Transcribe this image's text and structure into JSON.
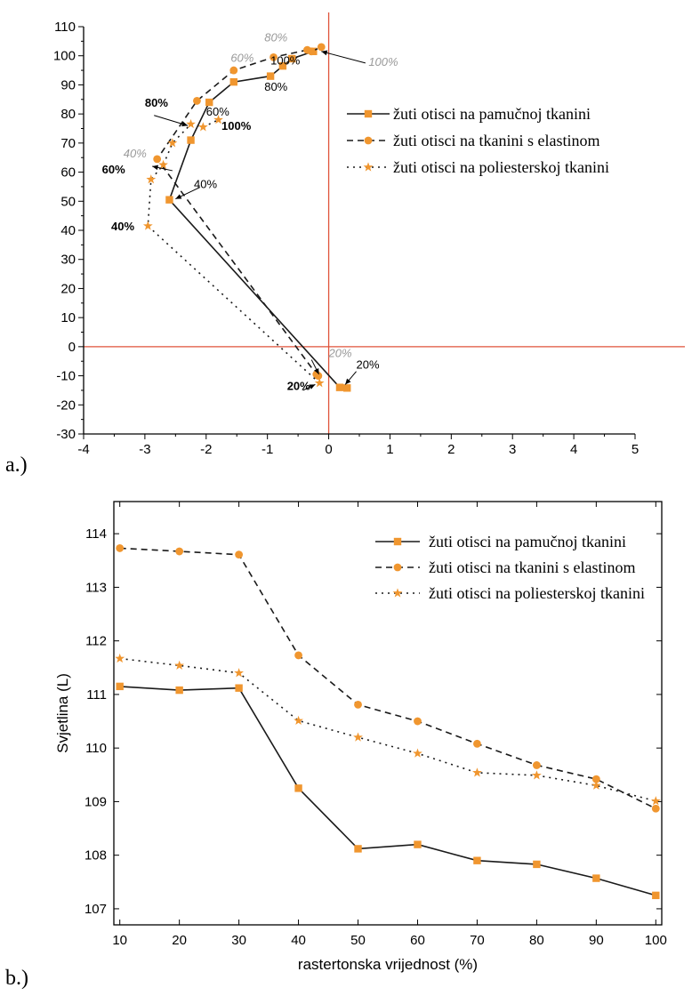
{
  "series_labels": [
    "žuti otisci na pamučnoj tkanini",
    "žuti otisci na tkanini s elastinom",
    "žuti otisci na poliesterskoj tkanini"
  ],
  "colors": {
    "marker": "#F0962F",
    "line": "#1a1a1a",
    "crosshair": "#E0533A",
    "gray_label": "#9a9a9a"
  },
  "chart_data": [
    {
      "panel_label": "a.)",
      "type": "scatter",
      "xlim": [
        -4,
        5
      ],
      "ylim": [
        -30,
        110
      ],
      "xticks": [
        -4,
        -3,
        -2,
        -1,
        0,
        1,
        2,
        3,
        4,
        5
      ],
      "yticks": [
        110,
        100,
        90,
        80,
        70,
        60,
        50,
        40,
        30,
        20,
        10,
        0,
        -10,
        -20,
        -30
      ],
      "zero_lines": true,
      "legend_position": "right",
      "series": [
        {
          "name": "žuti otisci na pamučnoj tkanini",
          "marker": "square",
          "line": "solid",
          "points": [
            [
              0.3,
              -14.2
            ],
            [
              0.18,
              -14.0
            ],
            [
              -2.6,
              50.5
            ],
            [
              -2.25,
              71.0
            ],
            [
              -1.95,
              84
            ],
            [
              -1.55,
              91
            ],
            [
              -0.95,
              93
            ],
            [
              -0.75,
              96.5
            ],
            [
              -0.6,
              99.0
            ],
            [
              -0.25,
              101.5
            ]
          ]
        },
        {
          "name": "žuti otisci na tkanini s elastinom",
          "marker": "circle",
          "line": "dashed",
          "points": [
            [
              -0.17,
              -10.0
            ],
            [
              -0.2,
              -9.5
            ],
            [
              -2.8,
              64.5
            ],
            [
              -2.15,
              84.5
            ],
            [
              -1.55,
              95.0
            ],
            [
              -0.9,
              99.5
            ],
            [
              -0.35,
              102.0
            ],
            [
              -0.28,
              101.5
            ],
            [
              -0.12,
              103.0
            ]
          ]
        },
        {
          "name": "žuti otisci na poliesterskoj tkanini",
          "marker": "star",
          "line": "dotted",
          "points": [
            [
              -0.15,
              -12.5
            ],
            [
              -2.95,
              41.5
            ],
            [
              -2.9,
              57.5
            ],
            [
              -2.7,
              62.5
            ],
            [
              -2.55,
              70.0
            ],
            [
              -2.25,
              76.5
            ],
            [
              -2.05,
              75.5
            ],
            [
              -1.8,
              78.0
            ]
          ]
        }
      ],
      "annotations": [
        {
          "text": "80%",
          "x": -1.05,
          "y": 105,
          "style": "gray"
        },
        {
          "text": "60%",
          "x": -1.6,
          "y": 98,
          "style": "gray"
        },
        {
          "text": "100%",
          "x": -0.95,
          "y": 97,
          "style": "black"
        },
        {
          "text": "80%",
          "x": -1.05,
          "y": 88,
          "style": "black"
        },
        {
          "text": "100%",
          "x": 0.65,
          "y": 96.5,
          "style": "gray"
        },
        {
          "text": "80%",
          "x": -3.0,
          "y": 82.5,
          "style": "bold"
        },
        {
          "text": "60%",
          "x": -2.0,
          "y": 79.5,
          "style": "black"
        },
        {
          "text": "100%",
          "x": -1.75,
          "y": 74.5,
          "style": "bold"
        },
        {
          "text": "40%",
          "x": -3.35,
          "y": 65,
          "style": "gray"
        },
        {
          "text": "60%",
          "x": -3.7,
          "y": 59.5,
          "style": "bold"
        },
        {
          "text": "40%",
          "x": -2.2,
          "y": 54.5,
          "style": "black"
        },
        {
          "text": "40%",
          "x": -3.55,
          "y": 40,
          "style": "bold"
        },
        {
          "text": "20%",
          "x": 0.0,
          "y": -3.5,
          "style": "gray"
        },
        {
          "text": "20%",
          "x": 0.45,
          "y": -7.5,
          "style": "black"
        },
        {
          "text": "20%",
          "x": -0.68,
          "y": -14.8,
          "style": "bold"
        }
      ]
    },
    {
      "panel_label": "b.)",
      "type": "line",
      "xlabel": "rastertonska vrijednost (%)",
      "ylabel": "Svjetlina (L)",
      "x": [
        10,
        20,
        30,
        40,
        50,
        60,
        70,
        80,
        90,
        100
      ],
      "xlim": [
        9,
        101
      ],
      "ylim": [
        106.7,
        114.6
      ],
      "xticks": [
        10,
        20,
        30,
        40,
        50,
        60,
        70,
        80,
        90,
        100
      ],
      "yticks": [
        107,
        108,
        109,
        110,
        111,
        112,
        113,
        114
      ],
      "legend_position": "top-right",
      "series": [
        {
          "name": "žuti otisci na pamučnoj tkanini",
          "marker": "square",
          "line": "solid",
          "values": [
            111.15,
            111.08,
            111.12,
            109.25,
            108.12,
            108.2,
            107.9,
            107.83,
            107.57,
            107.25
          ]
        },
        {
          "name": "žuti otisci na tkanini s elastinom",
          "marker": "circle",
          "line": "dashed",
          "values": [
            113.73,
            113.67,
            113.61,
            111.73,
            110.81,
            110.5,
            110.08,
            109.68,
            109.42,
            108.87
          ]
        },
        {
          "name": "žuti otisci na poliesterskoj tkanini",
          "marker": "star",
          "line": "dotted",
          "values": [
            111.67,
            111.54,
            111.4,
            110.51,
            110.2,
            109.9,
            109.54,
            109.49,
            109.3,
            109.01
          ]
        }
      ]
    }
  ]
}
